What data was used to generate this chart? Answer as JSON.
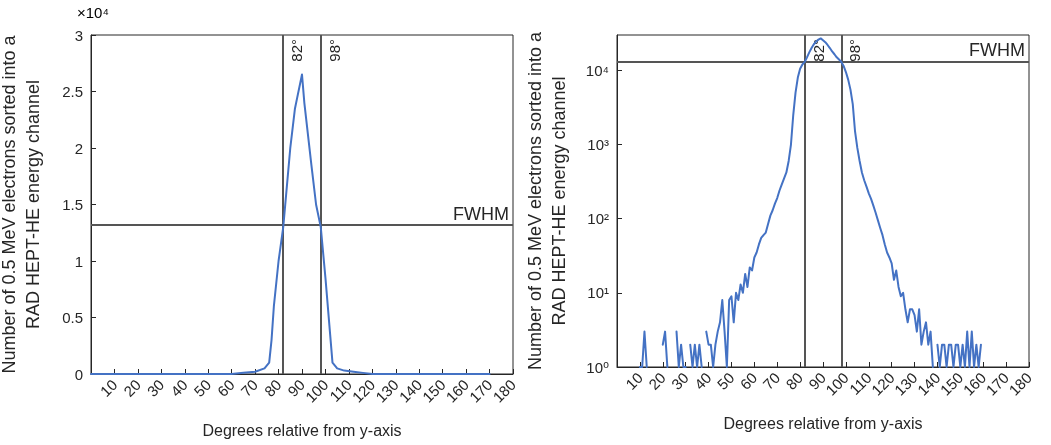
{
  "chart_data": [
    {
      "type": "line",
      "xlabel": "Degrees relative from y-axis",
      "ylabel": "Number of 0.5 MeV electrons sorted into a RAD HEPT-HE energy channel",
      "annotations": [
        "×10⁴"
      ],
      "x": [
        0,
        20,
        40,
        55,
        60,
        65,
        70,
        74,
        76,
        77,
        78,
        80,
        82,
        85,
        87,
        88,
        90,
        91,
        94,
        96,
        98,
        100,
        102,
        103,
        105,
        108,
        112,
        116,
        120,
        130,
        140,
        150,
        160,
        170
      ],
      "series": [
        {
          "color": "#4472c4",
          "values": [
            0,
            0,
            0,
            0,
            0,
            0.01,
            0.02,
            0.05,
            0.1,
            0.3,
            0.6,
            1.0,
            1.3,
            2.0,
            2.35,
            2.45,
            2.65,
            2.4,
            1.85,
            1.5,
            1.3,
            0.85,
            0.35,
            0.1,
            0.05,
            0.03,
            0.02,
            0.01,
            0,
            0,
            0,
            0,
            0,
            0
          ]
        }
      ],
      "xlim": [
        0,
        180
      ],
      "xticks": [
        10,
        20,
        30,
        40,
        50,
        60,
        70,
        80,
        90,
        100,
        110,
        120,
        130,
        140,
        150,
        160,
        170,
        180
      ],
      "ylim": [
        0,
        3
      ],
      "yticks": [
        0,
        0.5,
        1,
        1.5,
        2,
        2.5,
        3
      ],
      "ref_lines": [
        {
          "axis": "x",
          "value": 82,
          "label": "82°",
          "color": "#555555"
        },
        {
          "axis": "x",
          "value": 98,
          "label": "98°",
          "color": "#555555"
        },
        {
          "axis": "y",
          "value": 1.32,
          "label": "FWHM",
          "color": "#555555"
        }
      ],
      "grid": false,
      "marker": "none",
      "line_style": "solid"
    },
    {
      "type": "line",
      "xlabel": "Degrees relative from y-axis",
      "ylabel": "Number of 0.5 MeV electrons sorted into a RAD HEPT-HE energy channel",
      "log": "y",
      "x": [
        10,
        11,
        12,
        13,
        14,
        19,
        20,
        21,
        22,
        23,
        25,
        26,
        27,
        28,
        29,
        30,
        31,
        32,
        33,
        34,
        35,
        36,
        37,
        38,
        39,
        40,
        41,
        42,
        43,
        44,
        45,
        46,
        47,
        48,
        49,
        50,
        51,
        52,
        53,
        54,
        55,
        56,
        57,
        58,
        59,
        60,
        61,
        62,
        63,
        64,
        65,
        66,
        67,
        68,
        69,
        70,
        71,
        72,
        73,
        74,
        75,
        76,
        77,
        78,
        79,
        80,
        81,
        82,
        83,
        84,
        85,
        86,
        87,
        88,
        89,
        90,
        91,
        92,
        93,
        94,
        95,
        96,
        97,
        98,
        99,
        100,
        101,
        102,
        103,
        104,
        105,
        106,
        107,
        108,
        109,
        110,
        111,
        112,
        113,
        114,
        115,
        116,
        117,
        118,
        119,
        120,
        121,
        122,
        123,
        124,
        125,
        126,
        127,
        128,
        129,
        130,
        131,
        132,
        133,
        134,
        135,
        136,
        137,
        138,
        139,
        140,
        141,
        142,
        143,
        144,
        145,
        146,
        147,
        148,
        149,
        150,
        151,
        152,
        153,
        154,
        155,
        156,
        157,
        158,
        159
      ],
      "series": [
        {
          "color": "#4472c4",
          "values": [
            1,
            1,
            3,
            1,
            null,
            null,
            2,
            3,
            1,
            null,
            null,
            3,
            1,
            2,
            1,
            1,
            null,
            2,
            1,
            2,
            1,
            2,
            1,
            null,
            3,
            2,
            2,
            1,
            2,
            3,
            4,
            8,
            3,
            1,
            8,
            9,
            4,
            10,
            8,
            13,
            10,
            18,
            12,
            22,
            20,
            30,
            35,
            45,
            55,
            60,
            65,
            85,
            110,
            130,
            160,
            190,
            240,
            290,
            350,
            420,
            600,
            1000,
            2500,
            5000,
            8000,
            10500,
            12000,
            13000,
            15000,
            17500,
            20000,
            22500,
            24500,
            26000,
            27000,
            25500,
            24000,
            22000,
            20000,
            18000,
            16500,
            15000,
            14000,
            13000,
            11500,
            9500,
            7500,
            5500,
            3500,
            1500,
            900,
            600,
            420,
            330,
            270,
            220,
            185,
            150,
            120,
            95,
            75,
            60,
            45,
            35,
            30,
            25,
            15,
            20,
            12,
            9,
            10,
            6,
            4,
            6,
            6,
            5,
            3,
            6,
            2,
            3,
            4,
            2,
            3,
            1,
            null,
            2,
            1,
            2,
            2,
            1,
            2,
            2,
            1,
            2,
            2,
            1,
            2,
            1,
            3,
            1,
            3,
            1,
            2,
            1,
            2
          ]
        }
      ],
      "xlim": [
        0,
        180
      ],
      "xticks": [
        10,
        20,
        30,
        40,
        50,
        60,
        70,
        80,
        90,
        100,
        110,
        120,
        130,
        140,
        150,
        160,
        170,
        180
      ],
      "ylim": [
        1,
        30000
      ],
      "yticks": [
        {
          "value": 1,
          "label": "10⁰"
        },
        {
          "value": 10,
          "label": "10¹"
        },
        {
          "value": 100,
          "label": "10²"
        },
        {
          "value": 1000,
          "label": "10³"
        },
        {
          "value": 10000,
          "label": "10⁴"
        }
      ],
      "ref_lines": [
        {
          "axis": "x",
          "value": 82,
          "label": "82°",
          "color": "#555555"
        },
        {
          "axis": "x",
          "value": 98,
          "label": "98°",
          "color": "#555555"
        },
        {
          "axis": "y",
          "value": 13200,
          "label": "FWHM",
          "color": "#555555"
        }
      ],
      "grid": false,
      "marker": "none",
      "line_style": "solid"
    }
  ]
}
